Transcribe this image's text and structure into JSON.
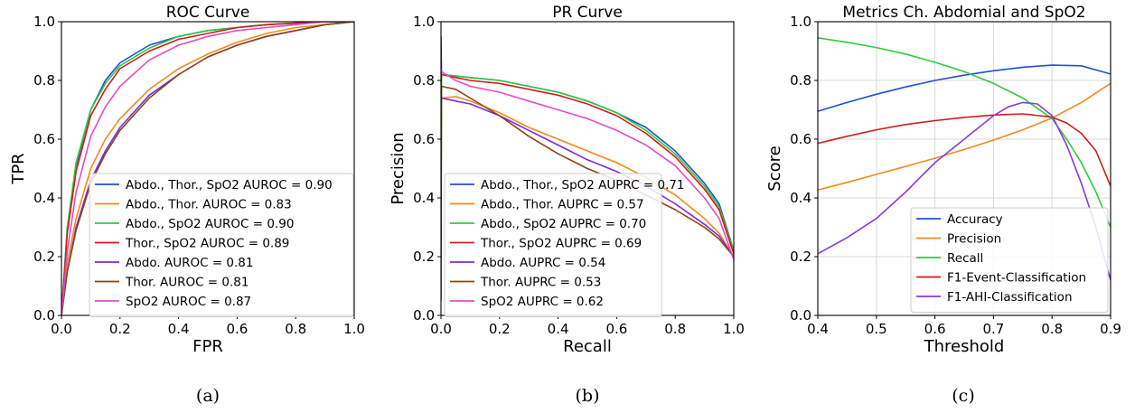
{
  "chart_data": [
    {
      "type": "line",
      "title": "ROC Curve",
      "caption": "(a)",
      "xlabel": "FPR",
      "ylabel": "TPR",
      "xlim": [
        0,
        1
      ],
      "ylim": [
        0,
        1
      ],
      "xticks": [
        "0.0",
        "0.2",
        "0.4",
        "0.6",
        "0.8",
        "1.0"
      ],
      "yticks": [
        "0.0",
        "0.2",
        "0.4",
        "0.6",
        "0.8",
        "1.0"
      ],
      "grid": false,
      "legend_position": "lower-right",
      "series": [
        {
          "name": "Abdo., Thor., SpO2 AUROC = 0.90",
          "color": "#1f4fd6",
          "x": [
            0,
            0.02,
            0.05,
            0.1,
            0.15,
            0.2,
            0.3,
            0.4,
            0.5,
            0.6,
            0.7,
            0.8,
            0.9,
            1.0
          ],
          "y": [
            0,
            0.3,
            0.51,
            0.7,
            0.8,
            0.86,
            0.92,
            0.95,
            0.97,
            0.98,
            0.99,
            0.995,
            1.0,
            1.0
          ]
        },
        {
          "name": "Abdo., Thor. AUROC = 0.83",
          "color": "#f28a1c",
          "x": [
            0,
            0.02,
            0.05,
            0.1,
            0.15,
            0.2,
            0.3,
            0.4,
            0.5,
            0.6,
            0.7,
            0.8,
            0.9,
            1.0
          ],
          "y": [
            0,
            0.18,
            0.33,
            0.5,
            0.6,
            0.67,
            0.77,
            0.84,
            0.89,
            0.93,
            0.96,
            0.98,
            0.99,
            1.0
          ]
        },
        {
          "name": "Abdo., SpO2 AUROC = 0.90",
          "color": "#2ecb3c",
          "x": [
            0,
            0.02,
            0.05,
            0.1,
            0.15,
            0.2,
            0.3,
            0.4,
            0.5,
            0.6,
            0.7,
            0.8,
            0.9,
            1.0
          ],
          "y": [
            0,
            0.3,
            0.52,
            0.7,
            0.79,
            0.85,
            0.91,
            0.95,
            0.97,
            0.98,
            0.99,
            0.995,
            1.0,
            1.0
          ]
        },
        {
          "name": "Thor., SpO2 AUROC = 0.89",
          "color": "#d01c1c",
          "x": [
            0,
            0.02,
            0.05,
            0.1,
            0.15,
            0.2,
            0.3,
            0.4,
            0.5,
            0.6,
            0.7,
            0.8,
            0.9,
            1.0
          ],
          "y": [
            0,
            0.28,
            0.49,
            0.68,
            0.77,
            0.84,
            0.9,
            0.94,
            0.96,
            0.98,
            0.99,
            0.995,
            1.0,
            1.0
          ]
        },
        {
          "name": "Abdo. AUROC = 0.81",
          "color": "#7a2bd9",
          "x": [
            0,
            0.02,
            0.05,
            0.1,
            0.15,
            0.2,
            0.3,
            0.4,
            0.5,
            0.6,
            0.7,
            0.8,
            0.9,
            1.0
          ],
          "y": [
            0,
            0.15,
            0.3,
            0.46,
            0.56,
            0.64,
            0.75,
            0.82,
            0.88,
            0.92,
            0.95,
            0.97,
            0.99,
            1.0
          ]
        },
        {
          "name": "Thor. AUROC = 0.81",
          "color": "#8b4513",
          "x": [
            0,
            0.02,
            0.05,
            0.1,
            0.15,
            0.2,
            0.3,
            0.4,
            0.5,
            0.6,
            0.7,
            0.8,
            0.9,
            1.0
          ],
          "y": [
            0,
            0.15,
            0.29,
            0.45,
            0.55,
            0.63,
            0.74,
            0.82,
            0.88,
            0.92,
            0.95,
            0.97,
            0.99,
            1.0
          ]
        },
        {
          "name": "SpO2 AUROC = 0.87",
          "color": "#e64bc4",
          "x": [
            0,
            0.02,
            0.05,
            0.1,
            0.15,
            0.2,
            0.3,
            0.4,
            0.5,
            0.6,
            0.7,
            0.8,
            0.9,
            1.0
          ],
          "y": [
            0,
            0.22,
            0.42,
            0.61,
            0.71,
            0.78,
            0.87,
            0.92,
            0.95,
            0.97,
            0.98,
            0.99,
            1.0,
            1.0
          ]
        }
      ]
    },
    {
      "type": "line",
      "title": "PR Curve",
      "caption": "(b)",
      "xlabel": "Recall",
      "ylabel": "Precision",
      "xlim": [
        0,
        1
      ],
      "ylim": [
        0,
        1
      ],
      "xticks": [
        "0.0",
        "0.2",
        "0.4",
        "0.6",
        "0.8",
        "1.0"
      ],
      "yticks": [
        "0.0",
        "0.2",
        "0.4",
        "0.6",
        "0.8",
        "1.0"
      ],
      "grid": false,
      "legend_position": "lower-left",
      "series": [
        {
          "name": "Abdo., Thor., SpO2 AUPRC = 0.71",
          "color": "#1f4fd6",
          "x": [
            0,
            0.002,
            0.05,
            0.1,
            0.2,
            0.3,
            0.4,
            0.5,
            0.6,
            0.7,
            0.8,
            0.9,
            0.95,
            1.0
          ],
          "y": [
            0.95,
            0.82,
            0.815,
            0.81,
            0.8,
            0.78,
            0.76,
            0.73,
            0.69,
            0.64,
            0.56,
            0.45,
            0.38,
            0.22
          ]
        },
        {
          "name": "Abdo., Thor. AUPRC = 0.57",
          "color": "#f28a1c",
          "x": [
            0,
            0.002,
            0.05,
            0.1,
            0.2,
            0.3,
            0.4,
            0.5,
            0.6,
            0.7,
            0.8,
            0.9,
            0.95,
            1.0
          ],
          "y": [
            0.72,
            0.74,
            0.745,
            0.73,
            0.69,
            0.64,
            0.6,
            0.56,
            0.52,
            0.47,
            0.41,
            0.33,
            0.28,
            0.2
          ]
        },
        {
          "name": "Abdo., SpO2 AUPRC = 0.70",
          "color": "#2ecb3c",
          "x": [
            0,
            0.002,
            0.05,
            0.1,
            0.2,
            0.3,
            0.4,
            0.5,
            0.6,
            0.7,
            0.8,
            0.9,
            0.95,
            1.0
          ],
          "y": [
            0.3,
            0.82,
            0.815,
            0.81,
            0.8,
            0.78,
            0.76,
            0.73,
            0.69,
            0.63,
            0.55,
            0.44,
            0.37,
            0.22
          ]
        },
        {
          "name": "Thor., SpO2 AUPRC = 0.69",
          "color": "#d01c1c",
          "x": [
            0,
            0.002,
            0.05,
            0.1,
            0.2,
            0.3,
            0.4,
            0.5,
            0.6,
            0.7,
            0.8,
            0.9,
            0.95,
            1.0
          ],
          "y": [
            0.78,
            0.82,
            0.81,
            0.8,
            0.79,
            0.77,
            0.75,
            0.72,
            0.68,
            0.62,
            0.54,
            0.43,
            0.36,
            0.21
          ]
        },
        {
          "name": "Abdo. AUPRC = 0.54",
          "color": "#7a2bd9",
          "x": [
            0,
            0.002,
            0.05,
            0.1,
            0.2,
            0.3,
            0.4,
            0.5,
            0.6,
            0.7,
            0.8,
            0.9,
            0.95,
            1.0
          ],
          "y": [
            0.72,
            0.74,
            0.73,
            0.72,
            0.68,
            0.63,
            0.58,
            0.53,
            0.49,
            0.44,
            0.38,
            0.31,
            0.27,
            0.2
          ]
        },
        {
          "name": "Thor. AUPRC = 0.53",
          "color": "#8b4513",
          "x": [
            0,
            0.002,
            0.05,
            0.1,
            0.2,
            0.3,
            0.4,
            0.5,
            0.6,
            0.7,
            0.8,
            0.9,
            0.95,
            1.0
          ],
          "y": [
            0.05,
            0.78,
            0.77,
            0.74,
            0.68,
            0.61,
            0.55,
            0.5,
            0.46,
            0.41,
            0.36,
            0.3,
            0.26,
            0.2
          ]
        },
        {
          "name": "SpO2 AUPRC = 0.62",
          "color": "#e64bc4",
          "x": [
            0,
            0.002,
            0.05,
            0.1,
            0.2,
            0.3,
            0.4,
            0.5,
            0.6,
            0.7,
            0.8,
            0.9,
            0.95,
            1.0
          ],
          "y": [
            0.84,
            0.83,
            0.8,
            0.78,
            0.76,
            0.73,
            0.7,
            0.67,
            0.63,
            0.58,
            0.51,
            0.4,
            0.33,
            0.19
          ]
        }
      ]
    },
    {
      "type": "line",
      "title": "Metrics Ch. Abdomial and SpO2",
      "caption": "(c)",
      "xlabel": "Threshold",
      "ylabel": "Score",
      "xlim": [
        0.4,
        0.9
      ],
      "ylim": [
        0,
        1
      ],
      "xticks": [
        "0.4",
        "0.5",
        "0.6",
        "0.7",
        "0.8",
        "0.9"
      ],
      "yticks": [
        "0.0",
        "0.2",
        "0.4",
        "0.6",
        "0.8",
        "1.0"
      ],
      "grid": true,
      "legend_position": "lower-right",
      "series": [
        {
          "name": "Accuracy",
          "color": "#1f4fd6",
          "x": [
            0.4,
            0.45,
            0.5,
            0.55,
            0.6,
            0.65,
            0.7,
            0.75,
            0.8,
            0.85,
            0.9
          ],
          "y": [
            0.695,
            0.725,
            0.753,
            0.778,
            0.8,
            0.818,
            0.833,
            0.845,
            0.852,
            0.85,
            0.822
          ]
        },
        {
          "name": "Precision",
          "color": "#f28a1c",
          "x": [
            0.4,
            0.45,
            0.5,
            0.55,
            0.6,
            0.65,
            0.7,
            0.75,
            0.8,
            0.85,
            0.9
          ],
          "y": [
            0.427,
            0.453,
            0.48,
            0.507,
            0.535,
            0.565,
            0.597,
            0.632,
            0.672,
            0.725,
            0.79
          ]
        },
        {
          "name": "Recall",
          "color": "#2ecb3c",
          "x": [
            0.4,
            0.45,
            0.5,
            0.55,
            0.6,
            0.65,
            0.7,
            0.75,
            0.8,
            0.825,
            0.85,
            0.875,
            0.9
          ],
          "y": [
            0.945,
            0.93,
            0.912,
            0.89,
            0.862,
            0.83,
            0.79,
            0.74,
            0.67,
            0.6,
            0.52,
            0.42,
            0.3
          ]
        },
        {
          "name": "F1-Event-Classification",
          "color": "#d01c1c",
          "x": [
            0.4,
            0.45,
            0.5,
            0.55,
            0.6,
            0.65,
            0.7,
            0.75,
            0.8,
            0.825,
            0.85,
            0.875,
            0.9
          ],
          "y": [
            0.586,
            0.61,
            0.632,
            0.65,
            0.663,
            0.674,
            0.682,
            0.686,
            0.675,
            0.655,
            0.62,
            0.56,
            0.44
          ]
        },
        {
          "name": "F1-AHI-Classification",
          "color": "#8a3ad8",
          "x": [
            0.4,
            0.45,
            0.5,
            0.55,
            0.6,
            0.65,
            0.7,
            0.725,
            0.75,
            0.775,
            0.8,
            0.825,
            0.85,
            0.875,
            0.9
          ],
          "y": [
            0.21,
            0.265,
            0.33,
            0.42,
            0.52,
            0.6,
            0.68,
            0.71,
            0.725,
            0.72,
            0.68,
            0.58,
            0.45,
            0.3,
            0.12
          ]
        }
      ]
    }
  ]
}
